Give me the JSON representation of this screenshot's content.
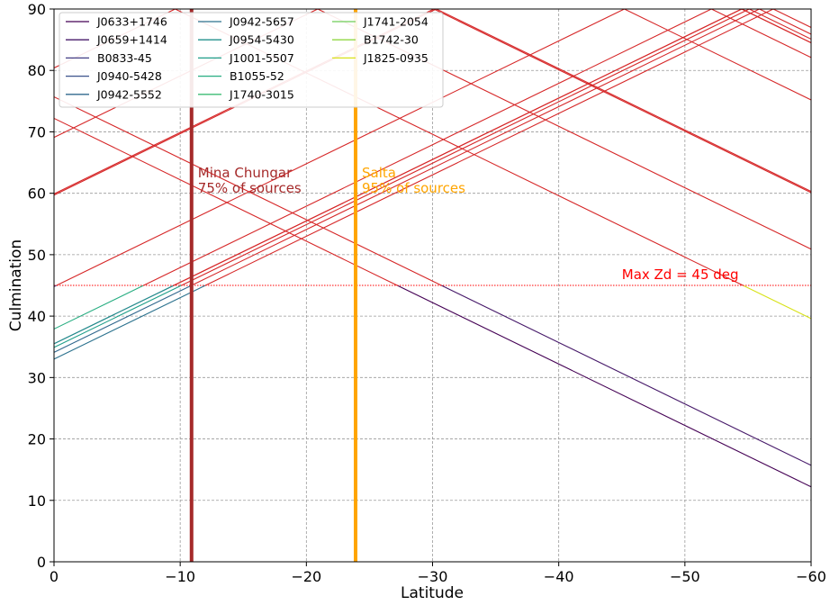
{
  "chart_data": {
    "type": "line",
    "title": "",
    "xlabel": "Latitude",
    "ylabel": "Culmination",
    "xlim": [
      0,
      -60
    ],
    "ylim": [
      0,
      90
    ],
    "x_ticks": [
      0,
      -10,
      -20,
      -30,
      -40,
      -50,
      -60
    ],
    "x_tick_labels": [
      "0",
      "−10",
      "−20",
      "−30",
      "−40",
      "−50",
      "−60"
    ],
    "y_ticks": [
      0,
      10,
      20,
      30,
      40,
      50,
      60,
      70,
      80,
      90
    ],
    "y_tick_labels": [
      "0",
      "10",
      "20",
      "30",
      "40",
      "50",
      "60",
      "70",
      "80",
      "90"
    ],
    "grid": true,
    "legend_location": "upper-left",
    "series": [
      {
        "name": "J0633+1746",
        "declination": 17.8,
        "color": "#440154"
      },
      {
        "name": "J0659+1414",
        "declination": 14.3,
        "color": "#471a6a"
      },
      {
        "name": "B0833-45",
        "declination": -45.2,
        "color": "#433e85"
      },
      {
        "name": "J0940-5428",
        "declination": -54.5,
        "color": "#3b528b"
      },
      {
        "name": "J0942-5552",
        "declination": -55.9,
        "color": "#31688e"
      },
      {
        "name": "J0942-5657",
        "declination": -57.0,
        "color": "#2c728e"
      },
      {
        "name": "J0954-5430",
        "declination": -54.5,
        "color": "#21918c"
      },
      {
        "name": "J1001-5507",
        "declination": -55.1,
        "color": "#1f9e89"
      },
      {
        "name": "B1055-52",
        "declination": -52.1,
        "color": "#27ad81"
      },
      {
        "name": "J1740-3015",
        "declination": -30.3,
        "color": "#3dbc74"
      },
      {
        "name": "J1741-2054",
        "declination": -20.9,
        "color": "#6ece58"
      },
      {
        "name": "B1742-30",
        "declination": -30.1,
        "color": "#90d743"
      },
      {
        "name": "J1825-0935",
        "declination": -9.6,
        "color": "#d8e219"
      }
    ],
    "line_rule": "culmination = 90 - |latitude - declination|, shown where culmination < 45 in the series color and where culmination > 45 in red",
    "above_threshold_color": "#d62728",
    "threshold": {
      "value": 45,
      "label": "Max Zd = 45 deg",
      "color": "#ff0000"
    },
    "sites": [
      {
        "latitude": -10.9,
        "name": "Mina Chungar",
        "subtitle": "75% of sources",
        "color": "#a52a2a"
      },
      {
        "latitude": -23.9,
        "name": "Salta",
        "subtitle": "95% of sources",
        "color": "#ffa500"
      }
    ]
  }
}
